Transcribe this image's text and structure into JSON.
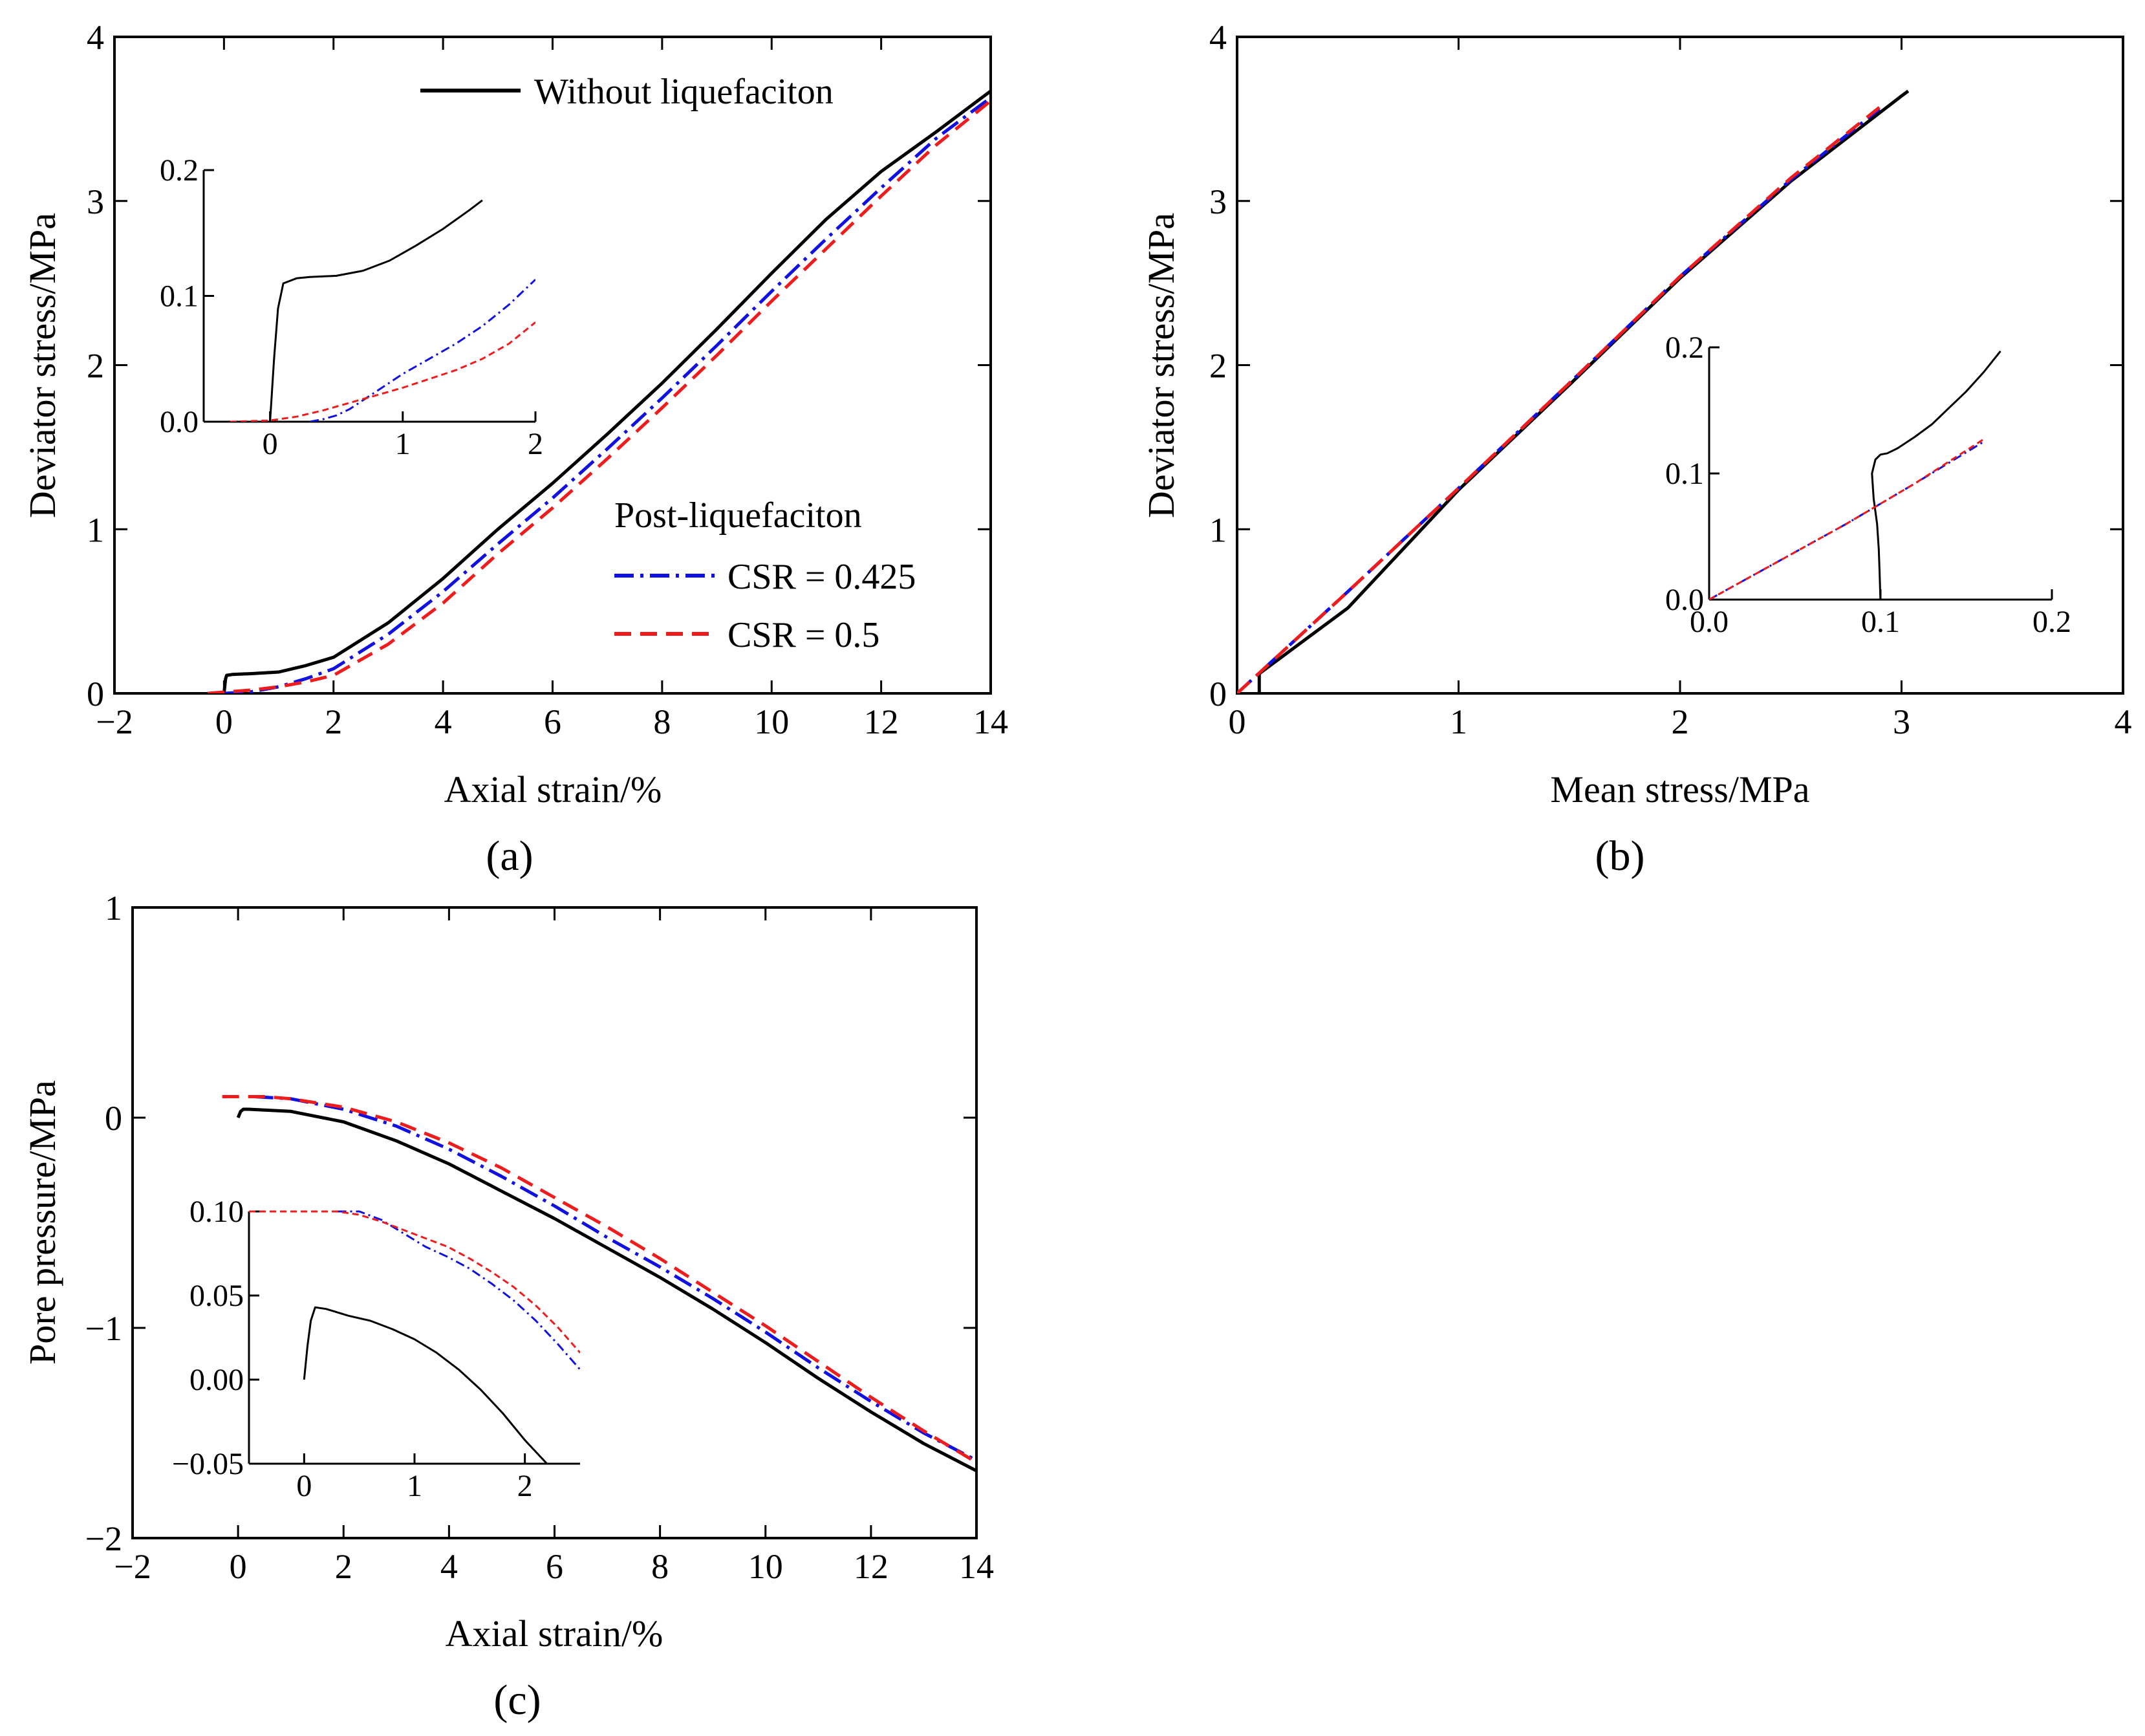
{
  "legend": {
    "without": "Without liquefaciton",
    "post_title": "Post-liquefaciton",
    "csr1": "CSR = 0.425",
    "csr2": "CSR = 0.5"
  },
  "colors": {
    "without": "#000000",
    "csr1": "#1010e0",
    "csr2": "#ee1c1c"
  },
  "captions": {
    "a": "(a)",
    "b": "(b)",
    "c": "(c)"
  },
  "chart_data": [
    {
      "id": "a",
      "type": "line",
      "xlabel": "Axial strain/%",
      "ylabel": "Deviator stress/MPa",
      "xlim": [
        -2,
        14
      ],
      "ylim": [
        0,
        4
      ],
      "xticks": [
        -2,
        0,
        2,
        4,
        6,
        8,
        10,
        12,
        14
      ],
      "yticks": [
        0,
        1,
        2,
        3,
        4
      ],
      "series": [
        {
          "name": "Without liquefaciton",
          "key": "without",
          "dash": "",
          "x": [
            0,
            0.03,
            0.05,
            0.15,
            0.5,
            1,
            1.5,
            2,
            3,
            4,
            5,
            6,
            7,
            8,
            9,
            10,
            11,
            12,
            13,
            14
          ],
          "y": [
            0,
            0.09,
            0.11,
            0.115,
            0.12,
            0.13,
            0.17,
            0.22,
            0.43,
            0.7,
            1.0,
            1.28,
            1.58,
            1.89,
            2.22,
            2.56,
            2.89,
            3.18,
            3.42,
            3.67
          ]
        },
        {
          "name": "CSR = 0.425",
          "key": "csr1",
          "dash": "30 10 5 10",
          "x": [
            0,
            0.5,
            1,
            1.5,
            2,
            3,
            4,
            5,
            6,
            7,
            8,
            9,
            10,
            11,
            12,
            13,
            14
          ],
          "y": [
            0,
            0.01,
            0.04,
            0.09,
            0.15,
            0.36,
            0.62,
            0.91,
            1.19,
            1.49,
            1.8,
            2.12,
            2.45,
            2.77,
            3.08,
            3.38,
            3.63
          ]
        },
        {
          "name": "CSR = 0.5",
          "key": "csr2",
          "dash": "26 14",
          "x": [
            -0.3,
            0.5,
            1,
            1.5,
            2,
            3,
            4,
            5,
            6,
            7,
            8,
            9,
            10,
            11,
            12,
            13,
            14
          ],
          "y": [
            0,
            0.02,
            0.04,
            0.07,
            0.11,
            0.3,
            0.55,
            0.85,
            1.13,
            1.43,
            1.74,
            2.06,
            2.39,
            2.71,
            3.03,
            3.34,
            3.61
          ]
        }
      ],
      "inset": {
        "xlim": [
          -0.5,
          2
        ],
        "ylim": [
          0,
          0.2
        ],
        "xticks": [
          0,
          1,
          2
        ],
        "yticks": [
          0,
          0.1,
          0.2
        ],
        "xtick_labels": [
          "0",
          "1",
          "2"
        ],
        "ytick_labels": [
          "0.0",
          "0.1",
          "0.2"
        ],
        "series": [
          {
            "key": "without",
            "dash": "",
            "x": [
              0,
              0.03,
              0.06,
              0.1,
              0.2,
              0.3,
              0.5,
              0.7,
              0.9,
              1.1,
              1.3,
              1.5,
              1.6
            ],
            "y": [
              0,
              0.05,
              0.09,
              0.11,
              0.114,
              0.115,
              0.116,
              0.12,
              0.128,
              0.14,
              0.153,
              0.168,
              0.176
            ]
          },
          {
            "key": "csr1",
            "dash": "14 6 3 6",
            "x": [
              0.3,
              0.4,
              0.5,
              0.6,
              0.7,
              0.8,
              0.9,
              1.0,
              1.2,
              1.4,
              1.6,
              1.8,
              2.0
            ],
            "y": [
              0,
              0.002,
              0.005,
              0.01,
              0.017,
              0.024,
              0.031,
              0.038,
              0.05,
              0.062,
              0.076,
              0.093,
              0.113
            ]
          },
          {
            "key": "csr2",
            "dash": "10 6",
            "x": [
              -0.3,
              0,
              0.2,
              0.4,
              0.6,
              0.8,
              1.0,
              1.2,
              1.4,
              1.6,
              1.8,
              2.0
            ],
            "y": [
              0,
              0.001,
              0.004,
              0.009,
              0.015,
              0.021,
              0.027,
              0.034,
              0.041,
              0.05,
              0.062,
              0.079
            ]
          }
        ]
      }
    },
    {
      "id": "b",
      "type": "line",
      "xlabel": "Mean stress/MPa",
      "ylabel": "Deviator stress/MPa",
      "xlim": [
        0,
        4
      ],
      "ylim": [
        0,
        4
      ],
      "xticks": [
        0,
        1,
        2,
        3,
        4
      ],
      "yticks": [
        0,
        1,
        2,
        3,
        4
      ],
      "series": [
        {
          "name": "Without liquefaciton",
          "key": "without",
          "dash": "",
          "x": [
            0.1,
            0.1,
            0.5,
            1,
            1.5,
            2,
            2.5,
            3,
            3.03
          ],
          "y": [
            0,
            0.12,
            0.52,
            1.24,
            1.88,
            2.53,
            3.12,
            3.64,
            3.67
          ]
        },
        {
          "name": "CSR = 0.425",
          "key": "csr1",
          "dash": "30 10 5 10",
          "x": [
            0,
            0.5,
            1,
            1.5,
            2,
            2.5,
            2.9
          ],
          "y": [
            0,
            0.62,
            1.25,
            1.89,
            2.54,
            3.13,
            3.56
          ]
        },
        {
          "name": "CSR = 0.5",
          "key": "csr2",
          "dash": "26 14",
          "x": [
            0,
            0.5,
            1,
            1.5,
            2,
            2.5,
            2.9
          ],
          "y": [
            0,
            0.62,
            1.25,
            1.89,
            2.54,
            3.14,
            3.57
          ]
        }
      ],
      "inset": {
        "xlim": [
          0,
          0.2
        ],
        "ylim": [
          0,
          0.2
        ],
        "xticks": [
          0,
          0.1,
          0.2
        ],
        "yticks": [
          0,
          0.1,
          0.2
        ],
        "xtick_labels": [
          "0.0",
          "0.1",
          "0.2"
        ],
        "ytick_labels": [
          "0.0",
          "0.1",
          "0.2"
        ],
        "series": [
          {
            "key": "without",
            "dash": "",
            "x": [
              0.1,
              0.0995,
              0.099,
              0.098,
              0.096,
              0.095,
              0.097,
              0.1,
              0.104,
              0.11,
              0.12,
              0.13,
              0.14,
              0.15,
              0.16,
              0.17
            ],
            "y": [
              -0.003,
              0.02,
              0.04,
              0.06,
              0.08,
              0.1,
              0.111,
              0.115,
              0.116,
              0.12,
              0.129,
              0.139,
              0.152,
              0.165,
              0.18,
              0.197
            ]
          },
          {
            "key": "csr1",
            "dash": "14 6 3 6",
            "x": [
              0,
              0.04,
              0.08,
              0.12,
              0.16
            ],
            "y": [
              0,
              0.03,
              0.06,
              0.092,
              0.125
            ]
          },
          {
            "key": "csr2",
            "dash": "10 6",
            "x": [
              0,
              0.04,
              0.08,
              0.12,
              0.16
            ],
            "y": [
              0,
              0.03,
              0.06,
              0.092,
              0.127
            ]
          }
        ]
      }
    },
    {
      "id": "c",
      "type": "line",
      "xlabel": "Axial strain/%",
      "ylabel": "Pore pressure/MPa",
      "xlim": [
        -2,
        14
      ],
      "ylim": [
        -2,
        1
      ],
      "xticks": [
        -2,
        0,
        2,
        4,
        6,
        8,
        10,
        12,
        14
      ],
      "yticks": [
        -2,
        -1,
        0,
        1
      ],
      "ytick_labels": [
        "−2",
        "−1",
        "0",
        "1"
      ],
      "series": [
        {
          "name": "Without liquefaciton",
          "key": "without",
          "dash": "",
          "x": [
            0,
            0.05,
            0.1,
            0.2,
            1,
            2,
            3,
            4,
            5,
            6,
            7,
            8,
            9,
            10,
            11,
            12,
            13,
            14
          ],
          "y": [
            0,
            0.03,
            0.04,
            0.04,
            0.03,
            -0.02,
            -0.11,
            -0.22,
            -0.35,
            -0.48,
            -0.62,
            -0.76,
            -0.91,
            -1.07,
            -1.24,
            -1.4,
            -1.55,
            -1.68
          ]
        },
        {
          "name": "CSR = 0.425",
          "key": "csr1",
          "dash": "30 10 5 10",
          "x": [
            0.3,
            1,
            2,
            3,
            4,
            5,
            6,
            7,
            8,
            9,
            10,
            11,
            12,
            13,
            14
          ],
          "y": [
            0.1,
            0.09,
            0.04,
            -0.04,
            -0.15,
            -0.28,
            -0.42,
            -0.57,
            -0.71,
            -0.86,
            -1.02,
            -1.19,
            -1.35,
            -1.5,
            -1.63
          ]
        },
        {
          "name": "CSR = 0.5",
          "key": "csr2",
          "dash": "26 14",
          "x": [
            -0.3,
            0,
            0.5,
            1,
            2,
            3,
            4,
            5,
            6,
            7,
            8,
            9,
            10,
            11,
            12,
            13,
            14
          ],
          "y": [
            0.1,
            0.1,
            0.1,
            0.09,
            0.05,
            -0.02,
            -0.12,
            -0.24,
            -0.38,
            -0.52,
            -0.67,
            -0.83,
            -0.99,
            -1.16,
            -1.33,
            -1.49,
            -1.64
          ]
        }
      ],
      "inset": {
        "xlim": [
          -0.5,
          2.5
        ],
        "ylim": [
          -0.05,
          0.1
        ],
        "xticks": [
          0,
          1,
          2
        ],
        "yticks": [
          -0.05,
          0,
          0.05,
          0.1
        ],
        "xtick_labels": [
          "0",
          "1",
          "2"
        ],
        "ytick_labels": [
          "−0.05",
          "0.00",
          "0.05",
          "0.10"
        ],
        "series": [
          {
            "key": "without",
            "dash": "",
            "x": [
              0,
              0.03,
              0.06,
              0.1,
              0.2,
              0.4,
              0.6,
              0.8,
              1.0,
              1.2,
              1.4,
              1.6,
              1.8,
              2.0,
              2.2
            ],
            "y": [
              0,
              0.02,
              0.035,
              0.043,
              0.042,
              0.038,
              0.035,
              0.03,
              0.024,
              0.016,
              0.006,
              -0.006,
              -0.02,
              -0.036,
              -0.05
            ]
          },
          {
            "key": "csr1",
            "dash": "14 6 3 6",
            "x": [
              0.3,
              0.5,
              0.7,
              0.9,
              1.1,
              1.3,
              1.5,
              1.7,
              1.9,
              2.1,
              2.3,
              2.5
            ],
            "y": [
              0.1,
              0.1,
              0.095,
              0.087,
              0.079,
              0.073,
              0.066,
              0.057,
              0.047,
              0.035,
              0.021,
              0.006
            ]
          },
          {
            "key": "csr2",
            "dash": "10 6",
            "x": [
              -0.5,
              0,
              0.3,
              0.5,
              0.7,
              0.9,
              1.1,
              1.3,
              1.5,
              1.7,
              1.9,
              2.1,
              2.3,
              2.5
            ],
            "y": [
              0.1,
              0.1,
              0.1,
              0.098,
              0.094,
              0.089,
              0.084,
              0.079,
              0.072,
              0.064,
              0.055,
              0.044,
              0.031,
              0.016
            ]
          }
        ]
      }
    }
  ]
}
